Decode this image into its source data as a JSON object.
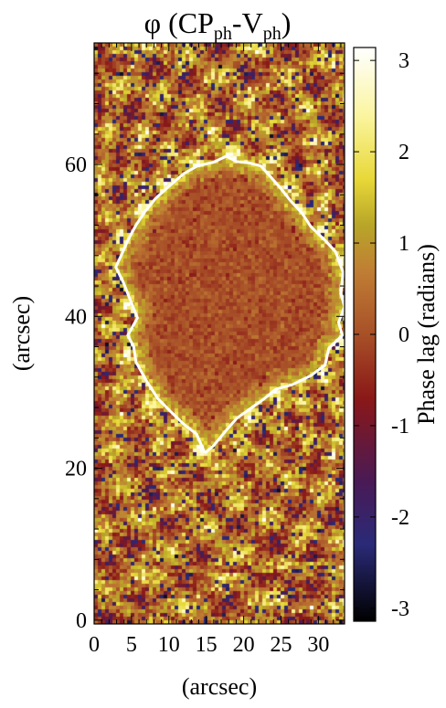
{
  "chart_data": {
    "type": "heatmap",
    "title": {
      "symbol": "φ",
      "open": " (CP",
      "sub1": "ph",
      "mid": "-V",
      "sub2": "ph",
      "close": ")"
    },
    "xlabel": "(arcsec)",
    "ylabel": "(arcsec)",
    "xlim": [
      0,
      33.5
    ],
    "ylim": [
      -0.5,
      76
    ],
    "x_ticks": [
      0,
      5,
      10,
      15,
      20,
      25,
      30
    ],
    "x_ticklabels": [
      "0",
      "5",
      "10",
      "15",
      "20",
      "25",
      "30"
    ],
    "y_ticks": [
      0,
      20,
      40,
      60
    ],
    "y_ticklabels": [
      "0",
      "20",
      "40",
      "60"
    ],
    "x_minor_step": 1,
    "y_minor_step": 4,
    "colorbar": {
      "label": "Phase lag (radians)",
      "range": [
        -3.14159,
        3.14159
      ],
      "ticks": [
        3,
        2,
        1,
        0,
        -1,
        -2,
        -3
      ],
      "ticklabels": [
        "3",
        "2",
        "1",
        "0",
        "-1",
        "-2",
        "-3"
      ],
      "colormap": [
        {
          "v": -3.14,
          "color": "#000000"
        },
        {
          "v": -2.3,
          "color": "#2a2a78"
        },
        {
          "v": -1.6,
          "color": "#4a1a55"
        },
        {
          "v": -0.7,
          "color": "#8a1818"
        },
        {
          "v": 0.0,
          "color": "#a85028"
        },
        {
          "v": 0.7,
          "color": "#c07e34"
        },
        {
          "v": 1.2,
          "color": "#b8a628"
        },
        {
          "v": 1.7,
          "color": "#e8d838"
        },
        {
          "v": 2.4,
          "color": "#fbf5a0"
        },
        {
          "v": 3.14,
          "color": "#ffffff"
        }
      ]
    },
    "contour": {
      "color": "#ffffff",
      "points": [
        [
          14.8,
          22.0
        ],
        [
          13.7,
          24.5
        ],
        [
          12.0,
          25.8
        ],
        [
          10.2,
          27.5
        ],
        [
          8.5,
          29.2
        ],
        [
          7.0,
          31.5
        ],
        [
          5.6,
          34.0
        ],
        [
          5.3,
          36.0
        ],
        [
          4.5,
          37.5
        ],
        [
          5.8,
          39.8
        ],
        [
          4.9,
          42.0
        ],
        [
          3.9,
          44.5
        ],
        [
          2.9,
          46.5
        ],
        [
          3.7,
          48.2
        ],
        [
          4.5,
          50.0
        ],
        [
          5.6,
          52.0
        ],
        [
          6.8,
          53.8
        ],
        [
          8.2,
          55.5
        ],
        [
          10.1,
          57.2
        ],
        [
          12.0,
          58.8
        ],
        [
          13.8,
          59.8
        ],
        [
          16.0,
          60.3
        ],
        [
          17.7,
          61.1
        ],
        [
          19.0,
          60.4
        ],
        [
          20.8,
          60.2
        ],
        [
          22.3,
          59.8
        ],
        [
          23.5,
          58.5
        ],
        [
          25.0,
          56.8
        ],
        [
          26.2,
          55.3
        ],
        [
          27.8,
          53.6
        ],
        [
          29.0,
          51.8
        ],
        [
          30.9,
          50.0
        ],
        [
          32.3,
          48.5
        ],
        [
          33.3,
          45.8
        ],
        [
          33.0,
          43.0
        ],
        [
          33.5,
          41.3
        ],
        [
          32.7,
          39.2
        ],
        [
          33.2,
          37.5
        ],
        [
          31.4,
          35.8
        ],
        [
          30.9,
          33.6
        ],
        [
          29.0,
          32.2
        ],
        [
          26.5,
          31.0
        ],
        [
          24.3,
          30.4
        ],
        [
          22.8,
          29.2
        ],
        [
          21.1,
          28.0
        ],
        [
          19.1,
          26.6
        ],
        [
          17.5,
          24.8
        ],
        [
          16.0,
          23.0
        ],
        [
          14.8,
          22.0
        ]
      ]
    },
    "spot_model": {
      "center_x": 18.0,
      "center_y": 42.0,
      "umbra_mean": 0.0,
      "boundary_mean": 1.6,
      "penumbra_mean": 0.5,
      "noise_pattern": "radial-filamentary"
    }
  }
}
